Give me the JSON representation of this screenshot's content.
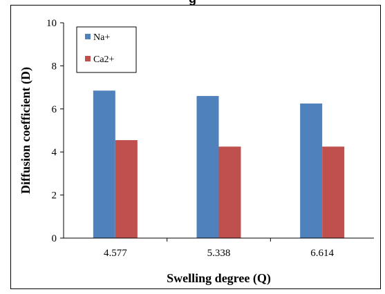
{
  "chart_data": {
    "type": "bar",
    "title": "",
    "xlabel": "Swelling degree (Q)",
    "ylabel": "Diffusion coefficient (D)",
    "categories": [
      "4.577",
      "5.338",
      "6.614"
    ],
    "series": [
      {
        "name": "Na+",
        "values": [
          6.85,
          6.6,
          6.25
        ],
        "color": "#4f81bd"
      },
      {
        "name": "Ca2+",
        "values": [
          4.55,
          4.25,
          4.25
        ],
        "color": "#c0504d"
      }
    ],
    "ylim": [
      0,
      10
    ],
    "yticks": [
      "0",
      "2",
      "4",
      "6",
      "8",
      "10"
    ],
    "grid": false,
    "legend_position": "top-left"
  }
}
